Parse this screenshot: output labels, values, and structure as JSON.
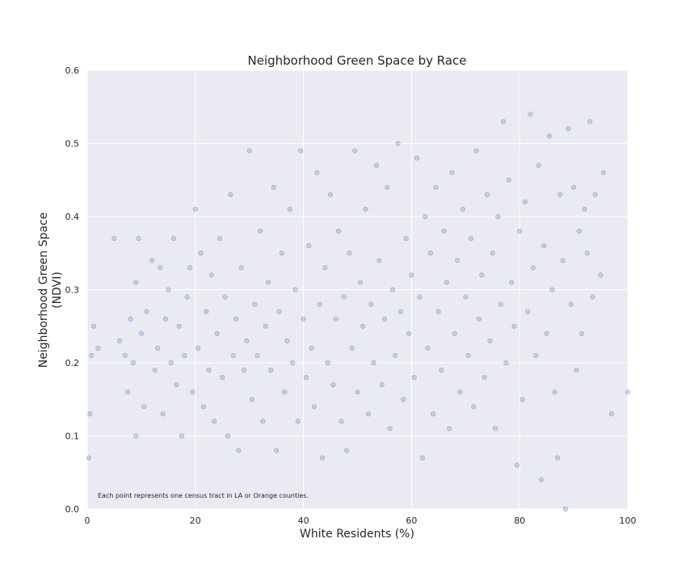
{
  "chart_data": {
    "type": "scatter",
    "title": "Neighborhood Green Space by Race",
    "xlabel": "White Residents (%)",
    "ylabel_lines": [
      "Neighborhood Green Space",
      "(NDVI)"
    ],
    "xlim": [
      0,
      100
    ],
    "ylim": [
      0.0,
      0.6
    ],
    "x_ticks": [
      "0",
      "20",
      "40",
      "60",
      "80",
      "100"
    ],
    "y_ticks": [
      "0.0",
      "0.1",
      "0.2",
      "0.3",
      "0.4",
      "0.5",
      "0.6"
    ],
    "grid": true,
    "annotation": "Each point represents one census tract in LA or Orange counties.",
    "point_color": "#4c72b0",
    "background_color": "#eaeaf2",
    "points": [
      [
        0.3,
        0.07
      ],
      [
        0.5,
        0.13
      ],
      [
        0.8,
        0.21
      ],
      [
        1.2,
        0.25
      ],
      [
        2.0,
        0.22
      ],
      [
        5.0,
        0.37
      ],
      [
        6.0,
        0.23
      ],
      [
        7.0,
        0.21
      ],
      [
        7.5,
        0.16
      ],
      [
        8.0,
        0.26
      ],
      [
        8.5,
        0.2
      ],
      [
        9.0,
        0.31
      ],
      [
        9.0,
        0.1
      ],
      [
        9.5,
        0.37
      ],
      [
        10.0,
        0.24
      ],
      [
        10.5,
        0.14
      ],
      [
        11.0,
        0.27
      ],
      [
        12.0,
        0.34
      ],
      [
        12.5,
        0.19
      ],
      [
        13.0,
        0.22
      ],
      [
        13.5,
        0.33
      ],
      [
        14.0,
        0.13
      ],
      [
        14.5,
        0.26
      ],
      [
        15.0,
        0.3
      ],
      [
        15.5,
        0.2
      ],
      [
        16.0,
        0.37
      ],
      [
        16.5,
        0.17
      ],
      [
        17.0,
        0.25
      ],
      [
        17.5,
        0.1
      ],
      [
        18.0,
        0.21
      ],
      [
        18.5,
        0.29
      ],
      [
        19.0,
        0.33
      ],
      [
        19.5,
        0.16
      ],
      [
        20.0,
        0.41
      ],
      [
        20.5,
        0.22
      ],
      [
        21.0,
        0.35
      ],
      [
        21.5,
        0.14
      ],
      [
        22.0,
        0.27
      ],
      [
        22.5,
        0.19
      ],
      [
        23.0,
        0.32
      ],
      [
        23.5,
        0.12
      ],
      [
        24.0,
        0.24
      ],
      [
        24.5,
        0.37
      ],
      [
        25.0,
        0.18
      ],
      [
        25.5,
        0.29
      ],
      [
        26.0,
        0.1
      ],
      [
        26.5,
        0.43
      ],
      [
        27.0,
        0.21
      ],
      [
        27.5,
        0.26
      ],
      [
        28.0,
        0.08
      ],
      [
        28.5,
        0.33
      ],
      [
        29.0,
        0.19
      ],
      [
        29.5,
        0.23
      ],
      [
        30.0,
        0.49
      ],
      [
        30.5,
        0.15
      ],
      [
        31.0,
        0.28
      ],
      [
        31.5,
        0.21
      ],
      [
        32.0,
        0.38
      ],
      [
        32.5,
        0.12
      ],
      [
        33.0,
        0.25
      ],
      [
        33.5,
        0.31
      ],
      [
        34.0,
        0.19
      ],
      [
        34.5,
        0.44
      ],
      [
        35.0,
        0.08
      ],
      [
        35.5,
        0.27
      ],
      [
        36.0,
        0.35
      ],
      [
        36.5,
        0.16
      ],
      [
        37.0,
        0.23
      ],
      [
        37.5,
        0.41
      ],
      [
        38.0,
        0.2
      ],
      [
        38.5,
        0.3
      ],
      [
        39.0,
        0.12
      ],
      [
        39.5,
        0.49
      ],
      [
        40.0,
        0.26
      ],
      [
        40.5,
        0.18
      ],
      [
        41.0,
        0.36
      ],
      [
        41.5,
        0.22
      ],
      [
        42.0,
        0.14
      ],
      [
        42.5,
        0.46
      ],
      [
        43.0,
        0.28
      ],
      [
        43.5,
        0.07
      ],
      [
        44.0,
        0.33
      ],
      [
        44.5,
        0.2
      ],
      [
        45.0,
        0.43
      ],
      [
        45.5,
        0.17
      ],
      [
        46.0,
        0.26
      ],
      [
        46.5,
        0.38
      ],
      [
        47.0,
        0.12
      ],
      [
        47.5,
        0.29
      ],
      [
        48.0,
        0.08
      ],
      [
        48.5,
        0.35
      ],
      [
        49.0,
        0.22
      ],
      [
        49.5,
        0.49
      ],
      [
        50.0,
        0.16
      ],
      [
        50.5,
        0.31
      ],
      [
        51.0,
        0.25
      ],
      [
        51.5,
        0.41
      ],
      [
        52.0,
        0.13
      ],
      [
        52.5,
        0.28
      ],
      [
        53.0,
        0.2
      ],
      [
        53.5,
        0.47
      ],
      [
        54.0,
        0.34
      ],
      [
        54.5,
        0.17
      ],
      [
        55.0,
        0.26
      ],
      [
        55.5,
        0.44
      ],
      [
        56.0,
        0.11
      ],
      [
        56.5,
        0.3
      ],
      [
        57.0,
        0.21
      ],
      [
        57.5,
        0.5
      ],
      [
        58.0,
        0.27
      ],
      [
        58.5,
        0.15
      ],
      [
        59.0,
        0.37
      ],
      [
        59.5,
        0.24
      ],
      [
        60.0,
        0.32
      ],
      [
        60.5,
        0.18
      ],
      [
        61.0,
        0.48
      ],
      [
        61.5,
        0.29
      ],
      [
        62.0,
        0.07
      ],
      [
        62.5,
        0.4
      ],
      [
        63.0,
        0.22
      ],
      [
        63.5,
        0.35
      ],
      [
        64.0,
        0.13
      ],
      [
        64.5,
        0.44
      ],
      [
        65.0,
        0.27
      ],
      [
        65.5,
        0.19
      ],
      [
        66.0,
        0.38
      ],
      [
        66.5,
        0.31
      ],
      [
        67.0,
        0.11
      ],
      [
        67.5,
        0.46
      ],
      [
        68.0,
        0.24
      ],
      [
        68.5,
        0.34
      ],
      [
        69.0,
        0.16
      ],
      [
        69.5,
        0.41
      ],
      [
        70.0,
        0.29
      ],
      [
        70.5,
        0.21
      ],
      [
        71.0,
        0.37
      ],
      [
        71.5,
        0.14
      ],
      [
        72.0,
        0.49
      ],
      [
        72.5,
        0.26
      ],
      [
        73.0,
        0.32
      ],
      [
        73.5,
        0.18
      ],
      [
        74.0,
        0.43
      ],
      [
        74.5,
        0.23
      ],
      [
        75.0,
        0.35
      ],
      [
        75.5,
        0.11
      ],
      [
        76.0,
        0.4
      ],
      [
        76.5,
        0.28
      ],
      [
        77.0,
        0.53
      ],
      [
        77.5,
        0.2
      ],
      [
        78.0,
        0.45
      ],
      [
        78.5,
        0.31
      ],
      [
        79.0,
        0.25
      ],
      [
        79.5,
        0.06
      ],
      [
        80.0,
        0.38
      ],
      [
        80.5,
        0.15
      ],
      [
        81.0,
        0.42
      ],
      [
        81.5,
        0.27
      ],
      [
        82.0,
        0.54
      ],
      [
        82.5,
        0.33
      ],
      [
        83.0,
        0.21
      ],
      [
        83.5,
        0.47
      ],
      [
        84.0,
        0.04
      ],
      [
        84.5,
        0.36
      ],
      [
        85.0,
        0.24
      ],
      [
        85.5,
        0.51
      ],
      [
        86.0,
        0.3
      ],
      [
        86.5,
        0.16
      ],
      [
        87.0,
        0.07
      ],
      [
        87.5,
        0.43
      ],
      [
        88.0,
        0.34
      ],
      [
        88.5,
        0.0
      ],
      [
        89.0,
        0.52
      ],
      [
        89.5,
        0.28
      ],
      [
        90.0,
        0.44
      ],
      [
        90.5,
        0.19
      ],
      [
        91.0,
        0.38
      ],
      [
        91.5,
        0.24
      ],
      [
        92.0,
        0.41
      ],
      [
        92.5,
        0.35
      ],
      [
        93.0,
        0.53
      ],
      [
        93.5,
        0.29
      ],
      [
        94.0,
        0.43
      ],
      [
        95.0,
        0.32
      ],
      [
        95.5,
        0.46
      ],
      [
        97.0,
        0.13
      ],
      [
        100.0,
        0.16
      ]
    ]
  }
}
